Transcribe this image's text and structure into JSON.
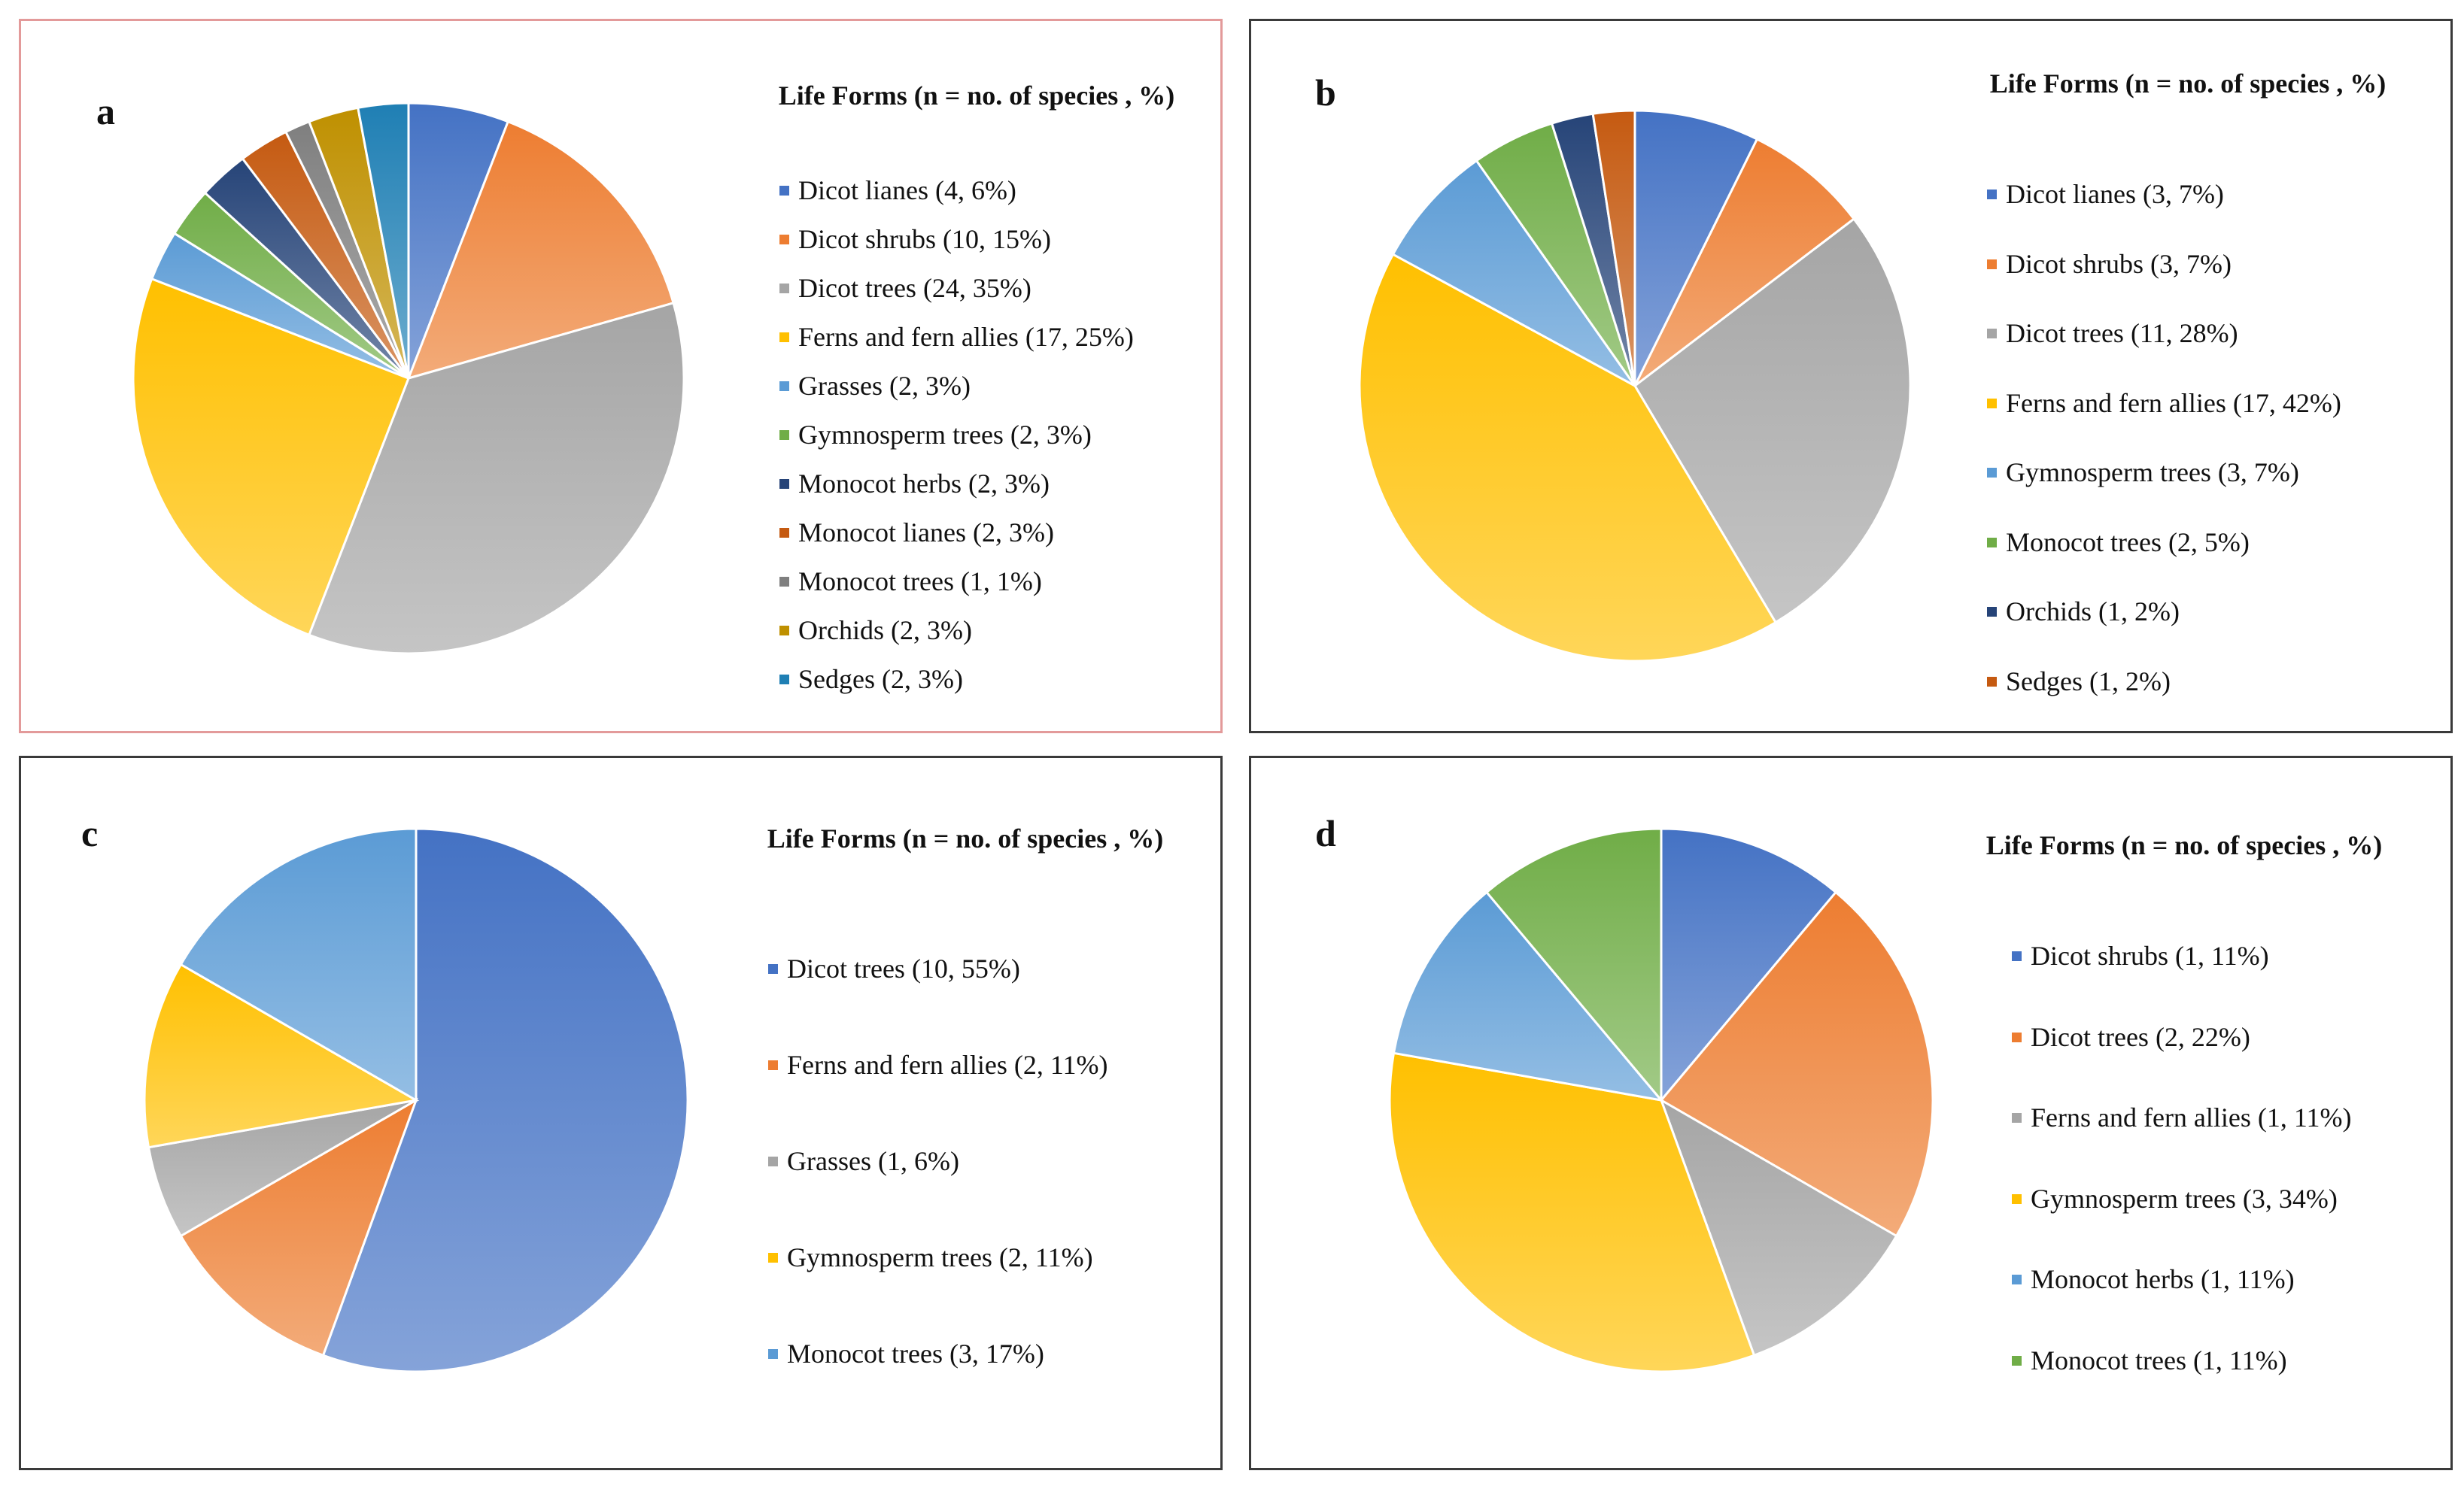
{
  "legend_title": "Life Forms (n = no. of species , %)",
  "chart_data": [
    {
      "type": "pie",
      "panel": "a",
      "title": "Life Forms (n = no. of species , %)",
      "slices": [
        {
          "label": "Dicot lianes (4, 6%)",
          "name": "Dicot lianes",
          "count": 4,
          "percent": 6,
          "color": "#4472c4"
        },
        {
          "label": "Dicot shrubs (10, 15%)",
          "name": "Dicot shrubs",
          "count": 10,
          "percent": 15,
          "color": "#ed7d31"
        },
        {
          "label": "Dicot trees (24, 35%)",
          "name": "Dicot trees",
          "count": 24,
          "percent": 35,
          "color": "#a5a5a5"
        },
        {
          "label": "Ferns and fern allies (17, 25%)",
          "name": "Ferns and fern allies",
          "count": 17,
          "percent": 25,
          "color": "#ffc000"
        },
        {
          "label": "Grasses (2, 3%)",
          "name": "Grasses",
          "count": 2,
          "percent": 3,
          "color": "#5b9bd5"
        },
        {
          "label": "Gymnosperm trees (2, 3%)",
          "name": "Gymnosperm trees",
          "count": 2,
          "percent": 3,
          "color": "#70ad47"
        },
        {
          "label": "Monocot herbs (2, 3%)",
          "name": "Monocot herbs",
          "count": 2,
          "percent": 3,
          "color": "#264478"
        },
        {
          "label": "Monocot lianes (2, 3%)",
          "name": "Monocot lianes",
          "count": 2,
          "percent": 3,
          "color": "#c55a11"
        },
        {
          "label": "Monocot trees (1, 1%)",
          "name": "Monocot trees",
          "count": 1,
          "percent": 1,
          "color": "#7f7f7f"
        },
        {
          "label": "Orchids (2, 3%)",
          "name": "Orchids",
          "count": 2,
          "percent": 3,
          "color": "#bf9000"
        },
        {
          "label": "Sedges (2, 3%)",
          "name": "Sedges",
          "count": 2,
          "percent": 3,
          "color": "#1f7fb4"
        }
      ]
    },
    {
      "type": "pie",
      "panel": "b",
      "title": "Life Forms (n = no. of species , %)",
      "slices": [
        {
          "label": "Dicot lianes (3, 7%)",
          "name": "Dicot lianes",
          "count": 3,
          "percent": 7,
          "color": "#4472c4"
        },
        {
          "label": "Dicot shrubs (3, 7%)",
          "name": "Dicot shrubs",
          "count": 3,
          "percent": 7,
          "color": "#ed7d31"
        },
        {
          "label": "Dicot trees (11, 28%)",
          "name": "Dicot trees",
          "count": 11,
          "percent": 28,
          "color": "#a5a5a5"
        },
        {
          "label": "Ferns and fern allies (17, 42%)",
          "name": "Ferns and fern allies",
          "count": 17,
          "percent": 42,
          "color": "#ffc000"
        },
        {
          "label": "Gymnosperm trees (3, 7%)",
          "name": "Gymnosperm trees",
          "count": 3,
          "percent": 7,
          "color": "#5b9bd5"
        },
        {
          "label": "Monocot trees (2, 5%)",
          "name": "Monocot trees",
          "count": 2,
          "percent": 5,
          "color": "#70ad47"
        },
        {
          "label": "Orchids (1, 2%)",
          "name": "Orchids",
          "count": 1,
          "percent": 2,
          "color": "#264478"
        },
        {
          "label": "Sedges (1, 2%)",
          "name": "Sedges",
          "count": 1,
          "percent": 2,
          "color": "#c55a11"
        }
      ]
    },
    {
      "type": "pie",
      "panel": "c",
      "title": "Life Forms (n = no. of species , %)",
      "slices": [
        {
          "label": "Dicot trees (10, 55%)",
          "name": "Dicot trees",
          "count": 10,
          "percent": 55,
          "color": "#4472c4"
        },
        {
          "label": "Ferns and fern allies (2, 11%)",
          "name": "Ferns and fern allies",
          "count": 2,
          "percent": 11,
          "color": "#ed7d31"
        },
        {
          "label": "Grasses (1, 6%)",
          "name": "Grasses",
          "count": 1,
          "percent": 6,
          "color": "#a5a5a5"
        },
        {
          "label": "Gymnosperm trees (2, 11%)",
          "name": "Gymnosperm trees",
          "count": 2,
          "percent": 11,
          "color": "#ffc000"
        },
        {
          "label": "Monocot trees (3, 17%)",
          "name": "Monocot trees",
          "count": 3,
          "percent": 17,
          "color": "#5b9bd5"
        }
      ]
    },
    {
      "type": "pie",
      "panel": "d",
      "title": "Life Forms (n = no. of species , %)",
      "slices": [
        {
          "label": "Dicot shrubs (1, 11%)",
          "name": "Dicot shrubs",
          "count": 1,
          "percent": 11,
          "color": "#4472c4"
        },
        {
          "label": "Dicot trees (2, 22%)",
          "name": "Dicot trees",
          "count": 2,
          "percent": 22,
          "color": "#ed7d31"
        },
        {
          "label": "Ferns and fern allies (1, 11%)",
          "name": "Ferns and fern allies",
          "count": 1,
          "percent": 11,
          "color": "#a5a5a5"
        },
        {
          "label": "Gymnosperm trees (3, 34%)",
          "name": "Gymnosperm trees",
          "count": 3,
          "percent": 34,
          "color": "#ffc000"
        },
        {
          "label": "Monocot herbs (1, 11%)",
          "name": "Monocot herbs",
          "count": 1,
          "percent": 11,
          "color": "#5b9bd5"
        },
        {
          "label": "Monocot trees (1, 11%)",
          "name": "Monocot trees",
          "count": 1,
          "percent": 11,
          "color": "#70ad47"
        }
      ]
    }
  ]
}
